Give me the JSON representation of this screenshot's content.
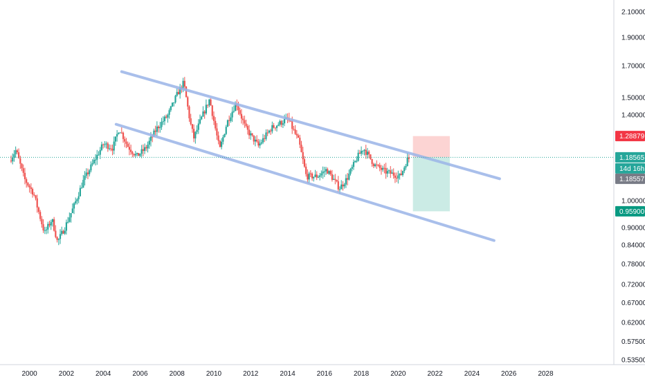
{
  "chart_data": {
    "type": "candlestick",
    "scale": "log",
    "grid": false,
    "legend": "none",
    "x_ticks": [
      "2000",
      "2002",
      "2004",
      "2006",
      "2008",
      "2010",
      "2012",
      "2014",
      "2016",
      "2018",
      "2020",
      "2022",
      "2024",
      "2026",
      "2028"
    ],
    "y_ticks": [
      "2.10000",
      "1.90000",
      "1.70000",
      "1.50000",
      "1.40000",
      "1.00000",
      "0.90000",
      "0.84000",
      "0.78000",
      "0.72000",
      "0.67000",
      "0.62000",
      "0.57500",
      "0.53500"
    ],
    "ylim": [
      0.525,
      2.2
    ],
    "xlim": [
      1998.4,
      2031.7
    ],
    "colors": {
      "up": "#26a69a",
      "down": "#ef5350",
      "channel": "#9bb5e8",
      "stop_zone": "#fcd4d3",
      "target_zone": "#cbebe5",
      "price_line": "#26a69a"
    },
    "price_anchors": [
      {
        "t": 1999.0,
        "p": 1.17
      },
      {
        "t": 1999.35,
        "p": 1.22
      },
      {
        "t": 1999.8,
        "p": 1.09
      },
      {
        "t": 2000.3,
        "p": 1.03
      },
      {
        "t": 2000.9,
        "p": 0.88
      },
      {
        "t": 2001.3,
        "p": 0.93
      },
      {
        "t": 2001.6,
        "p": 0.85
      },
      {
        "t": 2002.0,
        "p": 0.9
      },
      {
        "t": 2002.5,
        "p": 0.98
      },
      {
        "t": 2003.0,
        "p": 1.08
      },
      {
        "t": 2003.6,
        "p": 1.17
      },
      {
        "t": 2004.1,
        "p": 1.25
      },
      {
        "t": 2004.6,
        "p": 1.23
      },
      {
        "t": 2004.95,
        "p": 1.33
      },
      {
        "t": 2005.4,
        "p": 1.24
      },
      {
        "t": 2005.9,
        "p": 1.19
      },
      {
        "t": 2006.4,
        "p": 1.23
      },
      {
        "t": 2007.0,
        "p": 1.33
      },
      {
        "t": 2007.6,
        "p": 1.4
      },
      {
        "t": 2008.1,
        "p": 1.52
      },
      {
        "t": 2008.45,
        "p": 1.59
      },
      {
        "t": 2008.8,
        "p": 1.36
      },
      {
        "t": 2009.0,
        "p": 1.28
      },
      {
        "t": 2009.4,
        "p": 1.38
      },
      {
        "t": 2009.85,
        "p": 1.49
      },
      {
        "t": 2010.4,
        "p": 1.22
      },
      {
        "t": 2010.8,
        "p": 1.36
      },
      {
        "t": 2011.3,
        "p": 1.47
      },
      {
        "t": 2011.8,
        "p": 1.33
      },
      {
        "t": 2012.5,
        "p": 1.24
      },
      {
        "t": 2013.2,
        "p": 1.33
      },
      {
        "t": 2014.1,
        "p": 1.38
      },
      {
        "t": 2014.7,
        "p": 1.26
      },
      {
        "t": 2015.1,
        "p": 1.1
      },
      {
        "t": 2015.7,
        "p": 1.1
      },
      {
        "t": 2016.2,
        "p": 1.13
      },
      {
        "t": 2016.9,
        "p": 1.05
      },
      {
        "t": 2017.3,
        "p": 1.09
      },
      {
        "t": 2017.9,
        "p": 1.19
      },
      {
        "t": 2018.2,
        "p": 1.23
      },
      {
        "t": 2018.8,
        "p": 1.15
      },
      {
        "t": 2019.4,
        "p": 1.12
      },
      {
        "t": 2020.2,
        "p": 1.1
      },
      {
        "t": 2020.6,
        "p": 1.18
      }
    ],
    "channel_lines": [
      {
        "name": "upper",
        "start": {
          "t": 2005.0,
          "p": 1.66
        },
        "end": {
          "t": 2025.5,
          "p": 1.09
        }
      },
      {
        "name": "lower",
        "start": {
          "t": 2004.7,
          "p": 1.35
        },
        "end": {
          "t": 2025.2,
          "p": 0.855
        }
      }
    ],
    "position": {
      "start_t": 2020.8,
      "end_t": 2022.8,
      "entry": 1.18565,
      "stop": 1.28879,
      "target": 0.959
    },
    "current_price": 1.18565,
    "badges": [
      {
        "name": "stop-price-label",
        "value": "1.28879",
        "color": "#f23645"
      },
      {
        "name": "current-price-label",
        "value": "1.18565",
        "color": "#26a69a"
      },
      {
        "name": "countdown-label",
        "value": "14d 16h",
        "color": "#26a69a"
      },
      {
        "name": "last-value-label",
        "value": "1.18557",
        "color": "#787b86"
      },
      {
        "name": "target-price-label",
        "value": "0.95900",
        "color": "#089981"
      }
    ]
  }
}
